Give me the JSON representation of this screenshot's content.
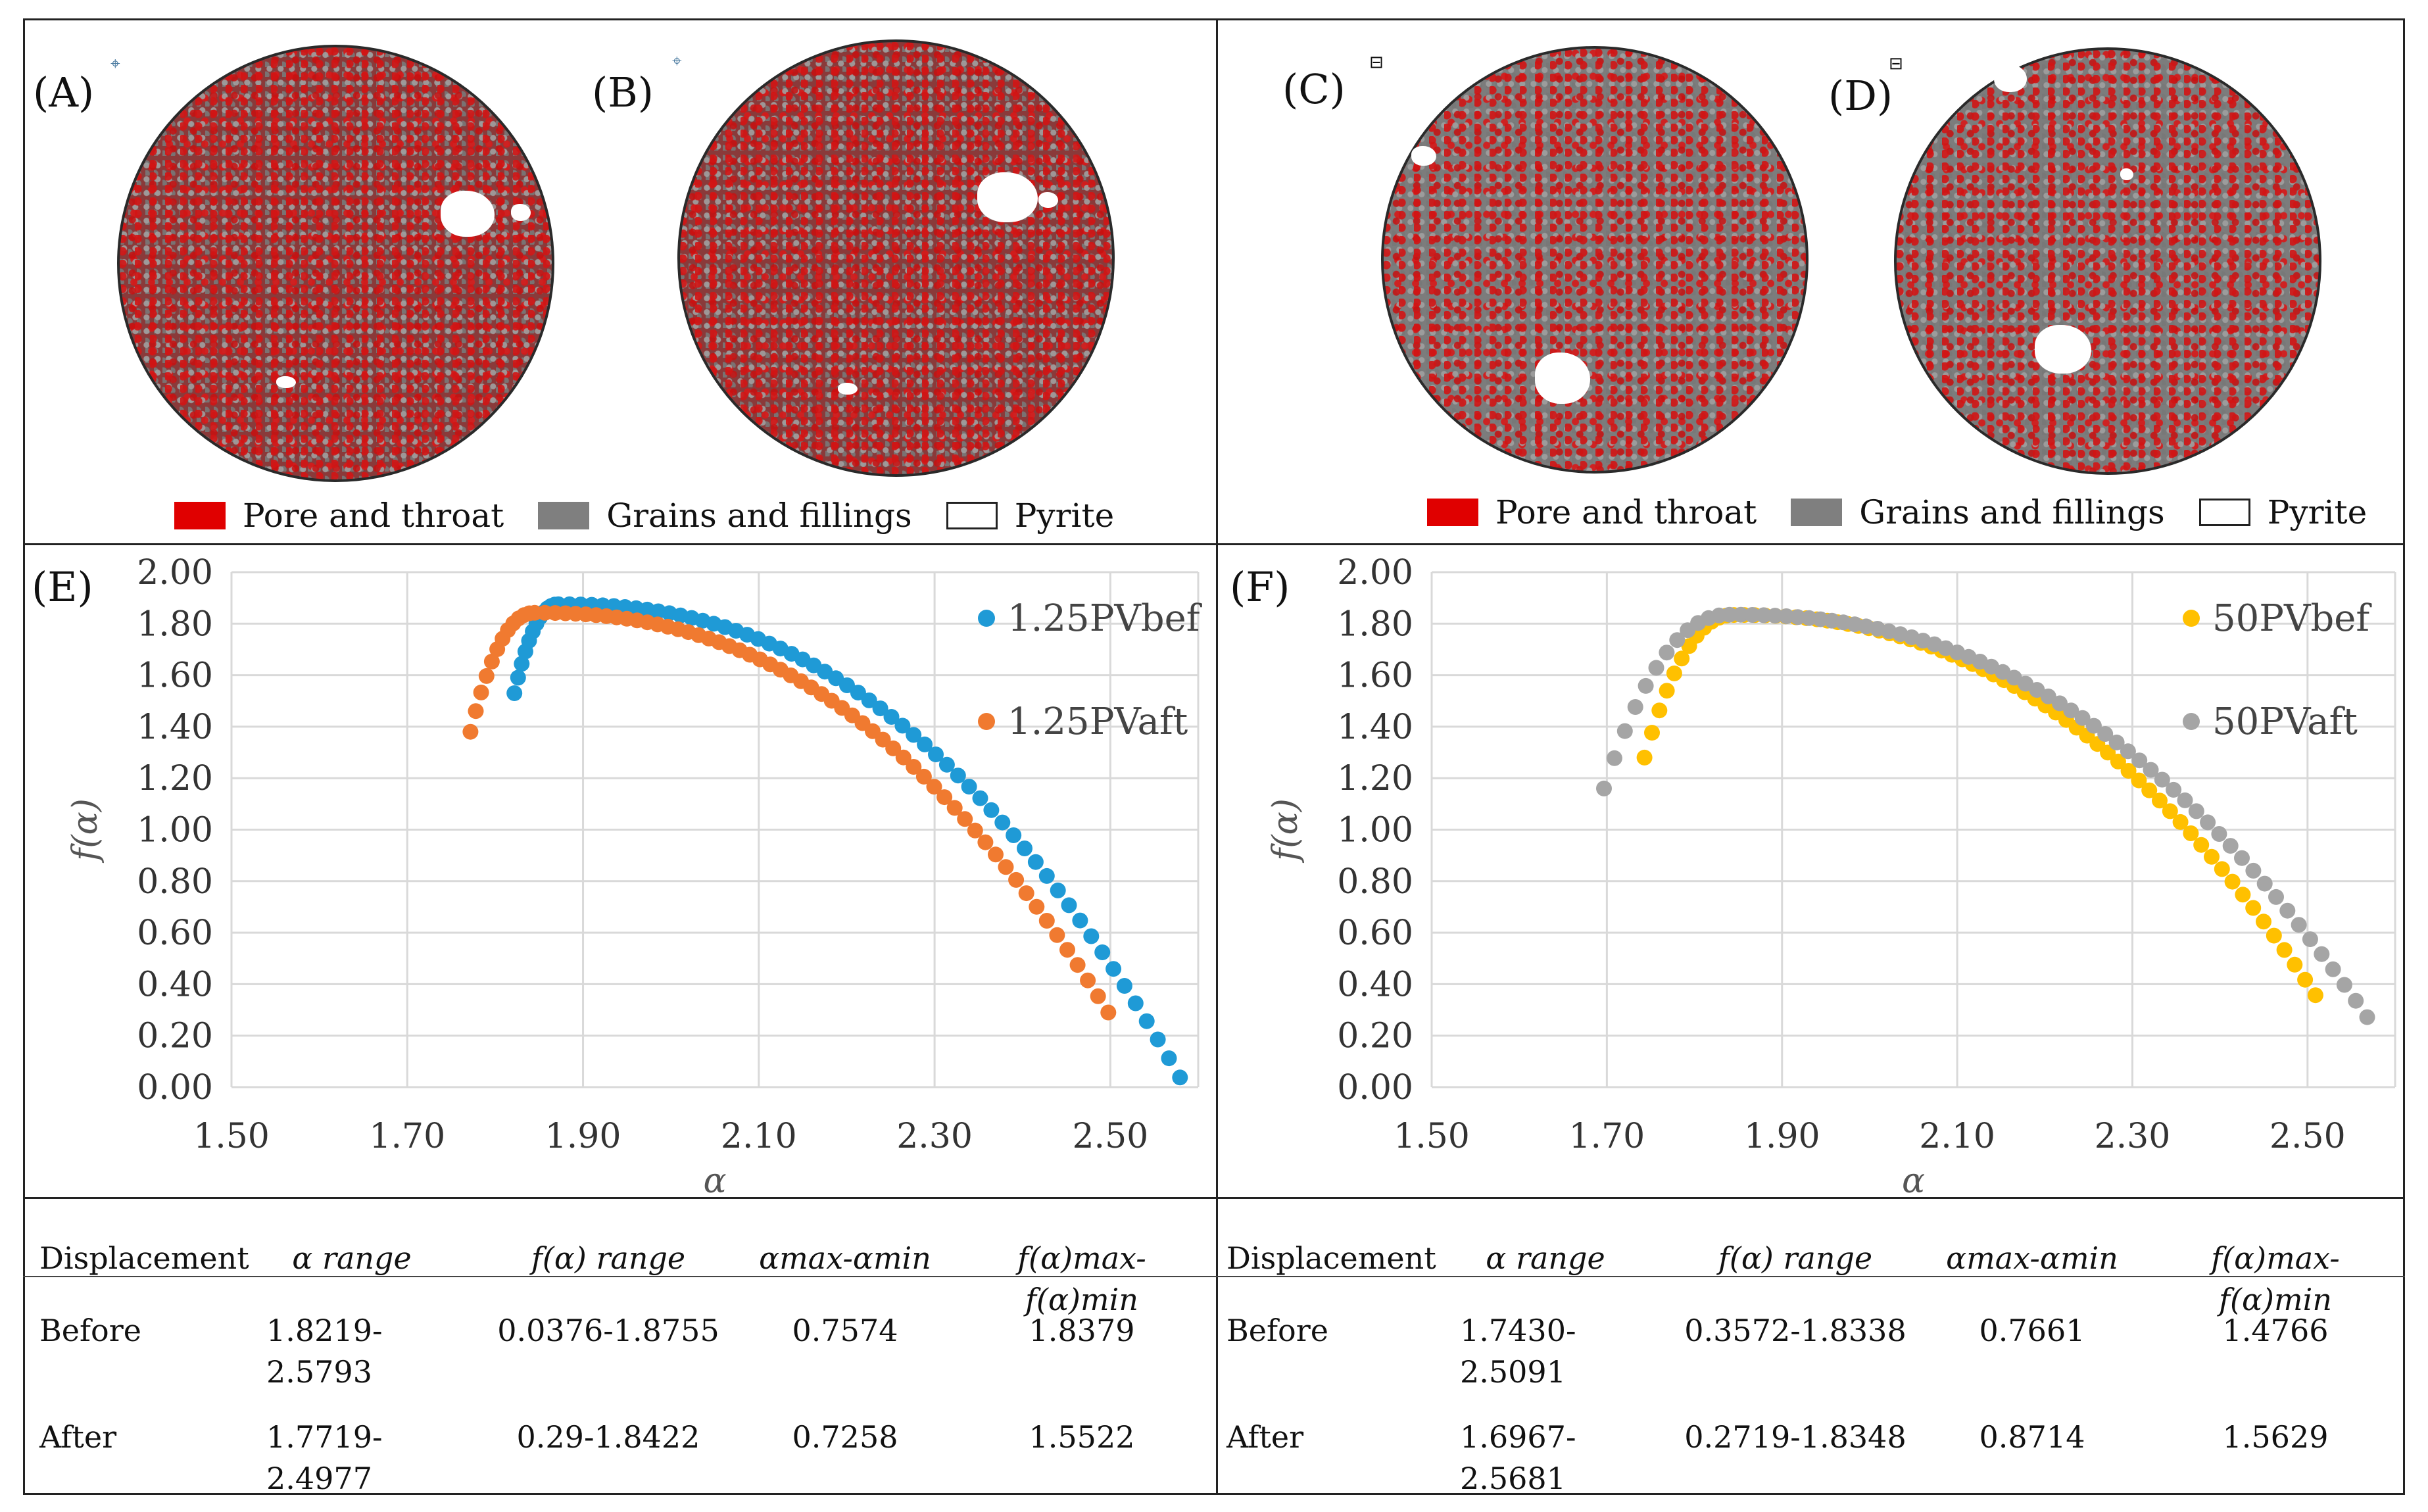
{
  "panels": {
    "A": "(A)",
    "B": "(B)",
    "C": "(C)",
    "D": "(D)",
    "E": "(E)",
    "F": "(F)"
  },
  "legend": {
    "pore": "Pore and throat",
    "grains": "Grains and fillings",
    "pyrite": "Pyrite",
    "colors": {
      "pore": "#e00000",
      "grains": "#7f7f7f",
      "pyrite": "#ffffff"
    }
  },
  "chart_data": [
    {
      "type": "scatter",
      "panel": "(E)",
      "xlabel": "α",
      "ylabel": "f(α)",
      "xlim": [
        1.5,
        2.6
      ],
      "ylim": [
        0.0,
        2.0
      ],
      "xticks": [
        "1.50",
        "1.70",
        "1.90",
        "2.10",
        "2.30",
        "2.50"
      ],
      "yticks": [
        "0.00",
        "0.20",
        "0.40",
        "0.60",
        "0.80",
        "1.00",
        "1.20",
        "1.40",
        "1.60",
        "1.80",
        "2.00"
      ],
      "grid": true,
      "legend_position": "top-right",
      "series": [
        {
          "name": "1.25PVbef",
          "color": "#1f9ad6",
          "alpha_min": 1.8219,
          "alpha_max": 2.5793,
          "alpha_peak": 1.872,
          "f_start": 1.53,
          "f_peak": 1.8755,
          "f_end": 0.0376
        },
        {
          "name": "1.25PVaft",
          "color": "#f07a30",
          "alpha_min": 1.7719,
          "alpha_max": 2.4977,
          "alpha_peak": 1.845,
          "f_start": 1.38,
          "f_peak": 1.8422,
          "f_end": 0.29
        }
      ]
    },
    {
      "type": "scatter",
      "panel": "(F)",
      "xlabel": "α",
      "ylabel": "f(α)",
      "xlim": [
        1.5,
        2.6
      ],
      "ylim": [
        0.0,
        2.0
      ],
      "xticks": [
        "1.50",
        "1.70",
        "1.90",
        "2.10",
        "2.30",
        "2.50"
      ],
      "yticks": [
        "0.00",
        "0.20",
        "0.40",
        "0.60",
        "0.80",
        "1.00",
        "1.20",
        "1.40",
        "1.60",
        "1.80",
        "2.00"
      ],
      "grid": true,
      "legend_position": "top-right",
      "series": [
        {
          "name": "50PVbef",
          "color": "#ffc000",
          "alpha_min": 1.743,
          "alpha_max": 2.5091,
          "alpha_peak": 1.845,
          "f_start": 1.28,
          "f_peak": 1.8338,
          "f_end": 0.3572
        },
        {
          "name": "50PVaft",
          "color": "#a5a5a5",
          "alpha_min": 1.6967,
          "alpha_max": 2.5681,
          "alpha_peak": 1.84,
          "f_start": 1.16,
          "f_peak": 1.8348,
          "f_end": 0.2719
        }
      ]
    }
  ],
  "table": {
    "headers": [
      "Displacement",
      "α range",
      "f(α) range",
      "αmax-αmin",
      "f(α)max- f(α)min"
    ],
    "left": [
      [
        "Before",
        "1.8219-\n2.5793",
        "0.0376-1.8755",
        "0.7574",
        "1.8379"
      ],
      [
        "After",
        "1.7719-\n2.4977",
        "0.29-1.8422",
        "0.7258",
        "1.5522"
      ]
    ],
    "right": [
      [
        "Before",
        "1.7430-\n2.5091",
        "0.3572-1.8338",
        "0.7661",
        "1.4766"
      ],
      [
        "After",
        "1.6967-\n2.5681",
        "0.2719-1.8348",
        "0.8714",
        "1.5629"
      ]
    ]
  }
}
